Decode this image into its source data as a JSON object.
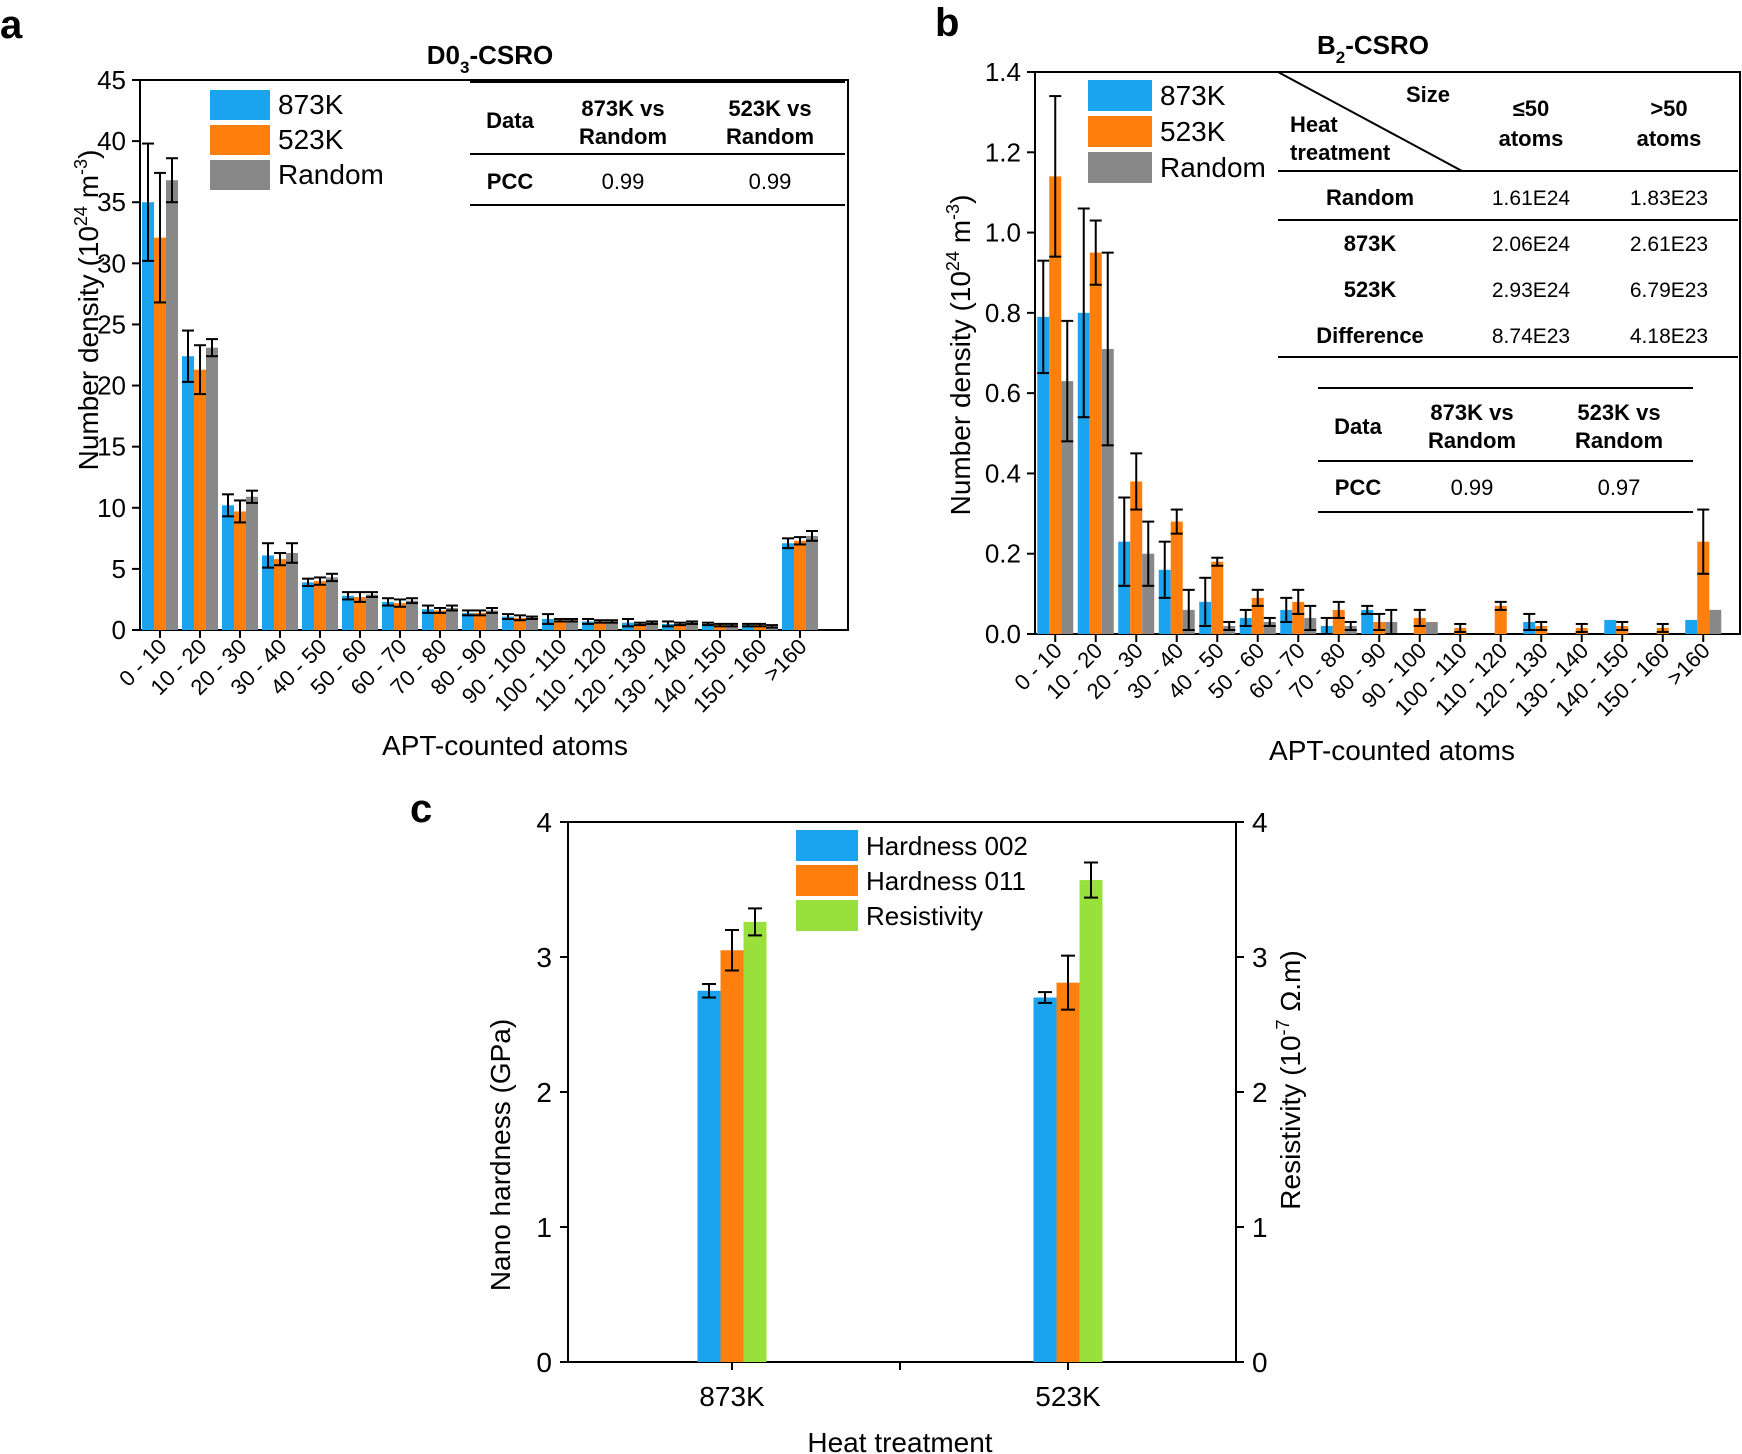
{
  "colors": {
    "c873": "#1aa3ee",
    "c523": "#ff7f0e",
    "cRandom": "#888888",
    "cResist": "#99e03c"
  },
  "chart_data": [
    {
      "id": "a",
      "panel_letter": "a",
      "type": "bar",
      "title_main": "D0",
      "title_sub": "3",
      "title_rest": "-CSRO",
      "xlabel": "APT-counted atoms",
      "ylabel_main": "Number density (10",
      "ylabel_sup1": "24",
      "ylabel_mid": " m",
      "ylabel_sup2": "-3",
      "ylabel_end": ")",
      "ylim": [
        0,
        45
      ],
      "yticks": [
        "0",
        "5",
        "10",
        "15",
        "20",
        "25",
        "30",
        "35",
        "40",
        "45"
      ],
      "categories": [
        "0 - 10",
        "10 - 20",
        "20 - 30",
        "30 - 40",
        "40 - 50",
        "50 - 60",
        "60 - 70",
        "70 - 80",
        "80 - 90",
        "90 - 100",
        "100 - 110",
        "110 - 120",
        "120 - 130",
        "130 - 140",
        "140 - 150",
        "150 - 160",
        ">160"
      ],
      "series": [
        {
          "name": "873K",
          "color_key": "c873",
          "values": [
            35.0,
            22.4,
            10.2,
            6.1,
            3.9,
            2.8,
            2.3,
            1.7,
            1.4,
            1.1,
            0.9,
            0.7,
            0.6,
            0.5,
            0.5,
            0.4,
            7.1
          ],
          "errors": [
            4.8,
            2.1,
            0.9,
            1.0,
            0.3,
            0.3,
            0.3,
            0.3,
            0.2,
            0.2,
            0.4,
            0.2,
            0.3,
            0.2,
            0.1,
            0.1,
            0.4
          ]
        },
        {
          "name": "523K",
          "color_key": "c523",
          "values": [
            32.1,
            21.3,
            9.7,
            5.8,
            4.0,
            2.7,
            2.2,
            1.6,
            1.4,
            1.0,
            0.8,
            0.7,
            0.5,
            0.5,
            0.4,
            0.4,
            7.3
          ],
          "errors": [
            5.3,
            2.0,
            0.9,
            0.5,
            0.3,
            0.4,
            0.3,
            0.2,
            0.2,
            0.2,
            0.1,
            0.1,
            0.1,
            0.1,
            0.1,
            0.1,
            0.3
          ]
        },
        {
          "name": "Random",
          "color_key": "cRandom",
          "values": [
            36.8,
            23.1,
            10.9,
            6.3,
            4.3,
            2.9,
            2.4,
            1.8,
            1.6,
            1.0,
            0.8,
            0.7,
            0.6,
            0.6,
            0.4,
            0.3,
            7.7
          ],
          "errors": [
            1.8,
            0.7,
            0.5,
            0.8,
            0.3,
            0.2,
            0.2,
            0.2,
            0.2,
            0.1,
            0.1,
            0.1,
            0.1,
            0.1,
            0.1,
            0.1,
            0.4
          ]
        }
      ],
      "legend": [
        "873K",
        "523K",
        "Random"
      ],
      "table": {
        "headers": [
          "Data",
          "873K vs Random",
          "523K vs Random"
        ],
        "row": [
          "PCC",
          "0.99",
          "0.99"
        ]
      }
    },
    {
      "id": "b",
      "panel_letter": "b",
      "type": "bar",
      "title_main": "B",
      "title_sub": "2",
      "title_rest": "-CSRO",
      "xlabel": "APT-counted atoms",
      "ylabel_main": "Number density (10",
      "ylabel_sup1": "24",
      "ylabel_mid": " m",
      "ylabel_sup2": "-3",
      "ylabel_end": ")",
      "ylim": [
        0,
        1.4
      ],
      "yticks": [
        "0.0",
        "0.2",
        "0.4",
        "0.6",
        "0.8",
        "1.0",
        "1.2",
        "1.4"
      ],
      "categories": [
        "0 - 10",
        "10 - 20",
        "20 - 30",
        "30 - 40",
        "40 - 50",
        "50 - 60",
        "60 - 70",
        "70 - 80",
        "80 - 90",
        "90 - 100",
        "100 - 110",
        "110 - 120",
        "120 - 130",
        "130 - 140",
        "140 - 150",
        "150 - 160",
        ">160"
      ],
      "series": [
        {
          "name": "873K",
          "color_key": "c873",
          "values": [
            0.79,
            0.8,
            0.23,
            0.16,
            0.08,
            0.04,
            0.06,
            0.02,
            0.06,
            0,
            0,
            0,
            0.03,
            0,
            0.035,
            0,
            0.035
          ],
          "errors": [
            0.14,
            0.26,
            0.11,
            0.07,
            0.06,
            0.02,
            0.03,
            0.02,
            0.01,
            0,
            0,
            0,
            0.02,
            0,
            0,
            0,
            0
          ]
        },
        {
          "name": "523K",
          "color_key": "c523",
          "values": [
            1.14,
            0.95,
            0.38,
            0.28,
            0.18,
            0.09,
            0.08,
            0.06,
            0.03,
            0.04,
            0.015,
            0.07,
            0.02,
            0.015,
            0.02,
            0.015,
            0.23
          ],
          "errors": [
            0.2,
            0.08,
            0.07,
            0.03,
            0.01,
            0.02,
            0.03,
            0.02,
            0.02,
            0.02,
            0.01,
            0.01,
            0.01,
            0.01,
            0.01,
            0.01,
            0.08
          ]
        },
        {
          "name": "Random",
          "color_key": "cRandom",
          "values": [
            0.63,
            0.71,
            0.2,
            0.06,
            0.02,
            0.03,
            0.04,
            0.02,
            0.03,
            0.03,
            0,
            0,
            0,
            0,
            0,
            0,
            0.06
          ],
          "errors": [
            0.15,
            0.24,
            0.08,
            0.05,
            0.01,
            0.01,
            0.03,
            0.01,
            0.03,
            0,
            0,
            0,
            0,
            0,
            0,
            0,
            0
          ]
        }
      ],
      "legend": [
        "873K",
        "523K",
        "Random"
      ],
      "size_table": {
        "corner_top": "Size",
        "corner_bottom_1": "Heat",
        "corner_bottom_2": "treatment",
        "col1_1": "≤50",
        "col1_2": "atoms",
        "col2_1": ">50",
        "col2_2": "atoms",
        "rows": [
          [
            "Random",
            "1.61E24",
            "1.83E23"
          ],
          [
            "873K",
            "2.06E24",
            "2.61E23"
          ],
          [
            "523K",
            "2.93E24",
            "6.79E23"
          ],
          [
            "Difference",
            "8.74E23",
            "4.18E23"
          ]
        ]
      },
      "table": {
        "headers": [
          "Data",
          "873K vs Random",
          "523K vs Random"
        ],
        "row": [
          "PCC",
          "0.99",
          "0.97"
        ]
      }
    },
    {
      "id": "c",
      "panel_letter": "c",
      "type": "bar",
      "xlabel": "Heat treatment",
      "ylabel_left": "Nano hardness (GPa)",
      "ylabel_right_main": "Resistivity (10",
      "ylabel_right_sup": "-7",
      "ylabel_right_end": " Ω.m)",
      "ylim": [
        0,
        4
      ],
      "yticks": [
        "0",
        "1",
        "2",
        "3",
        "4"
      ],
      "categories": [
        "873K",
        "523K"
      ],
      "series": [
        {
          "name": "Hardness 002",
          "color_key": "c873",
          "values": [
            2.75,
            2.7
          ],
          "errors": [
            0.05,
            0.04
          ]
        },
        {
          "name": "Hardness 011",
          "color_key": "c523",
          "values": [
            3.05,
            2.81
          ],
          "errors": [
            0.15,
            0.2
          ]
        },
        {
          "name": "Resistivity",
          "color_key": "cResist",
          "values": [
            3.26,
            3.57
          ],
          "errors": [
            0.1,
            0.13
          ]
        }
      ],
      "legend": [
        "Hardness 002",
        "Hardness 011",
        "Resistivity"
      ]
    }
  ]
}
